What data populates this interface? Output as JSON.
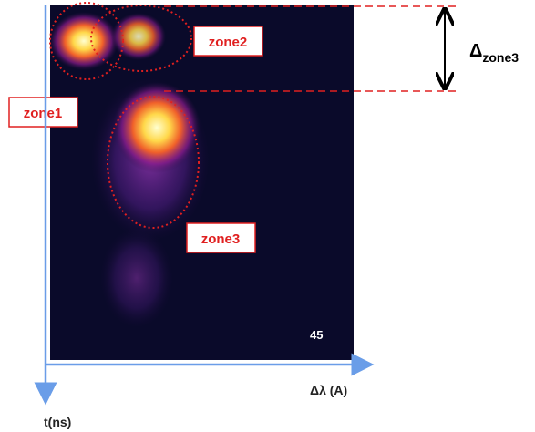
{
  "labels": {
    "zone1": "zone1",
    "zone2": "zone2",
    "zone3": "zone3"
  },
  "frame_number": "45",
  "x_axis_label": "Δλ (A)",
  "y_axis_label": "t(ns)",
  "delta_label": {
    "symbol": "Δ",
    "subscript": "zone3"
  }
}
